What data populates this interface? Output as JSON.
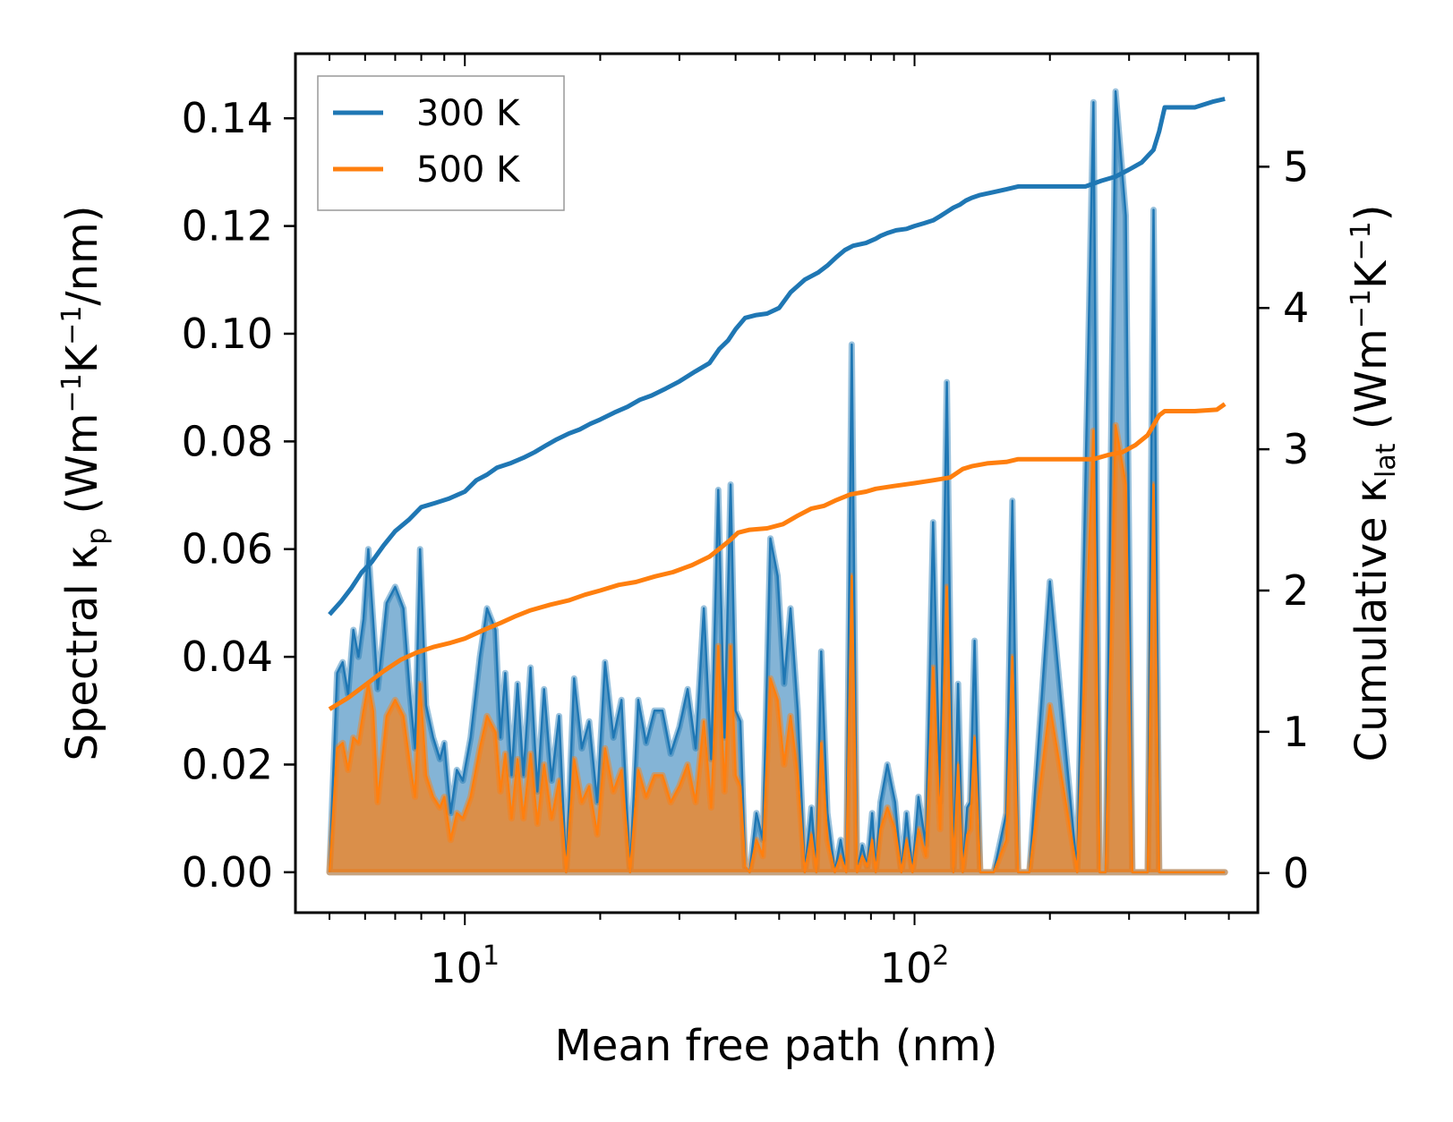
{
  "chart_data": {
    "type": "line",
    "xlabel": "Mean free path (nm)",
    "x_scale": "log",
    "xlim": [
      4.2,
      580
    ],
    "x_ticks": [
      {
        "value": 10,
        "base": "10",
        "exp": "1"
      },
      {
        "value": 100,
        "base": "10",
        "exp": "2"
      }
    ],
    "y_left": {
      "label": {
        "t1": "Spectral κ",
        "sub": "p",
        "t2": " (Wm",
        "sup1": "−1",
        "t3": "K",
        "sup2": "−1",
        "t4": "/nm)"
      },
      "ylim": [
        -0.0075,
        0.152
      ],
      "ticks": [
        "0.00",
        "0.02",
        "0.04",
        "0.06",
        "0.08",
        "0.10",
        "0.12",
        "0.14"
      ]
    },
    "y_right": {
      "label": {
        "t1": "Cumulative κ",
        "sub": "lat",
        "t2": " (Wm",
        "sup1": "−1",
        "t3": "K",
        "sup2": "−1",
        "t4": ")"
      },
      "ylim": [
        -0.28,
        5.8
      ],
      "ticks": [
        "0",
        "1",
        "2",
        "3",
        "4",
        "5"
      ]
    },
    "legend": {
      "position": "top-left"
    },
    "series": [
      {
        "name": "300 K",
        "color": "#1f77b4",
        "spectral": {
          "x": [
            5.0,
            5.2,
            5.35,
            5.5,
            5.65,
            5.8,
            5.95,
            6.1,
            6.25,
            6.4,
            6.7,
            7.0,
            7.3,
            7.55,
            7.75,
            7.95,
            8.2,
            8.5,
            8.8,
            9.0,
            9.3,
            9.6,
            9.9,
            10.3,
            10.8,
            11.2,
            11.7,
            12.0,
            12.3,
            12.7,
            13.1,
            13.5,
            14.0,
            14.5,
            15.0,
            15.6,
            16.2,
            16.8,
            17.5,
            18.2,
            18.9,
            19.7,
            20.5,
            21.4,
            22.3,
            23.3,
            24.3,
            25.3,
            26.4,
            27.5,
            28.7,
            30.0,
            31.3,
            32.6,
            34.0,
            35.3,
            36.6,
            37.8,
            39.0,
            40.0,
            41.0,
            42.0,
            43.0,
            44.5,
            46.0,
            47.8,
            49.6,
            51.3,
            53.0,
            55.0,
            57.0,
            59.0,
            60.5,
            62.0,
            64.0,
            66.5,
            68.5,
            70.5,
            72.5,
            74.5,
            76.5,
            78.5,
            80.5,
            82.0,
            84.0,
            87.0,
            90.5,
            93.5,
            96.0,
            99.0,
            102.0,
            106.0,
            110.0,
            114.0,
            118.0,
            122.0,
            125.0,
            128.0,
            131.0,
            133.0,
            136.0,
            140.0,
            150.0,
            160.0,
            165.0,
            170.0,
            180.0,
            200.0,
            230.0,
            250.0,
            258.0,
            266.0,
            280.0,
            295.0,
            305.0,
            313.0,
            320.0,
            325.0,
            330.0,
            340.0,
            350.0,
            358.0,
            365.0,
            372.0,
            380.0,
            400.0,
            430.0,
            460.0,
            480.0,
            490.0
          ],
          "values": [
            0.0,
            0.037,
            0.039,
            0.033,
            0.045,
            0.04,
            0.047,
            0.06,
            0.047,
            0.034,
            0.05,
            0.053,
            0.049,
            0.033,
            0.023,
            0.06,
            0.031,
            0.025,
            0.021,
            0.024,
            0.011,
            0.019,
            0.017,
            0.025,
            0.04,
            0.049,
            0.045,
            0.025,
            0.037,
            0.018,
            0.035,
            0.018,
            0.038,
            0.015,
            0.034,
            0.017,
            0.029,
            0.0,
            0.036,
            0.023,
            0.028,
            0.013,
            0.039,
            0.025,
            0.032,
            0.0,
            0.032,
            0.024,
            0.03,
            0.03,
            0.022,
            0.027,
            0.034,
            0.023,
            0.049,
            0.021,
            0.071,
            0.025,
            0.072,
            0.03,
            0.028,
            0.001,
            0.0,
            0.011,
            0.006,
            0.062,
            0.055,
            0.035,
            0.049,
            0.03,
            0.0,
            0.012,
            0.0,
            0.041,
            0.011,
            0.0,
            0.006,
            0.0,
            0.098,
            0.0,
            0.005,
            0.001,
            0.011,
            0.0,
            0.013,
            0.02,
            0.013,
            0.0,
            0.011,
            0.0,
            0.014,
            0.005,
            0.065,
            0.013,
            0.091,
            0.0,
            0.035,
            0.0,
            0.012,
            0.013,
            0.043,
            0.0,
            0.0,
            0.011,
            0.069,
            0.0,
            0.0,
            0.054,
            0.0,
            0.143,
            0.0,
            0.0,
            0.145,
            0.122,
            0.0,
            0.0,
            0.0,
            0.0,
            0.0,
            0.123,
            0.0,
            0.0,
            0.0,
            0.0,
            0.0,
            0.0,
            0.0,
            0.0,
            0.0,
            0.0
          ],
          "__note": "cumulative below"
        },
        "cumulative": {
          "x": [
            5.0,
            5.3,
            5.6,
            5.9,
            6.2,
            6.6,
            7.0,
            7.5,
            8.0,
            8.6,
            9.2,
            10.0,
            10.6,
            11.2,
            11.8,
            12.6,
            13.5,
            14.3,
            15.2,
            16.0,
            17.0,
            18.0,
            19.0,
            20.0,
            21.5,
            23.0,
            24.5,
            26.0,
            28.0,
            30.0,
            32.5,
            35.0,
            36.8,
            38.5,
            40.0,
            42.0,
            44.5,
            47.0,
            50.0,
            53.0,
            57.0,
            61.0,
            64.0,
            67.0,
            70.0,
            73.0,
            78.0,
            82.0,
            84.0,
            87.0,
            91.0,
            96.0,
            100.0,
            105.0,
            110.0,
            114.0,
            118.0,
            122.0,
            126.0,
            130.0,
            134.0,
            140.0,
            150.0,
            160.0,
            170.0,
            200.0,
            240.0,
            260.0,
            280.0,
            300.0,
            320.0,
            340.0,
            350.0,
            360.0,
            420.0,
            460.0,
            490.0
          ],
          "values": [
            1.83,
            1.92,
            2.02,
            2.13,
            2.2,
            2.32,
            2.42,
            2.5,
            2.59,
            2.62,
            2.65,
            2.7,
            2.78,
            2.82,
            2.87,
            2.9,
            2.94,
            2.98,
            3.03,
            3.07,
            3.11,
            3.14,
            3.18,
            3.21,
            3.26,
            3.3,
            3.35,
            3.38,
            3.43,
            3.48,
            3.55,
            3.61,
            3.71,
            3.77,
            3.85,
            3.93,
            3.95,
            3.96,
            4.0,
            4.11,
            4.2,
            4.25,
            4.3,
            4.36,
            4.41,
            4.44,
            4.46,
            4.49,
            4.51,
            4.53,
            4.55,
            4.56,
            4.58,
            4.6,
            4.62,
            4.65,
            4.68,
            4.71,
            4.73,
            4.76,
            4.78,
            4.8,
            4.82,
            4.84,
            4.86,
            4.86,
            4.86,
            4.9,
            4.93,
            4.98,
            5.03,
            5.12,
            5.25,
            5.42,
            5.42,
            5.46,
            5.48
          ]
        }
      },
      {
        "name": "500 K",
        "color": "#ff7f0e",
        "spectral": {
          "x": [
            5.0,
            5.2,
            5.35,
            5.5,
            5.65,
            5.8,
            5.95,
            6.1,
            6.25,
            6.4,
            6.7,
            7.0,
            7.3,
            7.55,
            7.75,
            7.95,
            8.2,
            8.5,
            8.8,
            9.0,
            9.3,
            9.6,
            9.9,
            10.3,
            10.8,
            11.2,
            11.7,
            12.0,
            12.3,
            12.7,
            13.1,
            13.5,
            14.0,
            14.5,
            15.0,
            15.6,
            16.2,
            16.8,
            17.5,
            18.2,
            18.9,
            19.7,
            20.5,
            21.4,
            22.3,
            23.3,
            24.3,
            25.3,
            26.4,
            27.5,
            28.7,
            30.0,
            31.3,
            32.6,
            34.0,
            35.3,
            36.6,
            37.8,
            39.0,
            40.0,
            41.0,
            42.0,
            43.0,
            44.5,
            46.0,
            47.8,
            49.6,
            51.3,
            53.0,
            55.0,
            57.0,
            59.0,
            60.5,
            62.0,
            64.0,
            66.5,
            68.5,
            70.5,
            72.5,
            74.5,
            76.5,
            78.5,
            80.5,
            82.0,
            84.0,
            87.0,
            90.5,
            93.5,
            96.0,
            99.0,
            102.0,
            106.0,
            110.0,
            114.0,
            118.0,
            122.0,
            125.0,
            128.0,
            131.0,
            133.0,
            136.0,
            140.0,
            150.0,
            160.0,
            165.0,
            170.0,
            180.0,
            200.0,
            230.0,
            250.0,
            258.0,
            266.0,
            280.0,
            295.0,
            305.0,
            313.0,
            320.0,
            325.0,
            330.0,
            340.0,
            350.0,
            358.0,
            365.0,
            372.0,
            380.0,
            400.0,
            430.0,
            460.0,
            480.0,
            490.0
          ],
          "values": [
            0.0,
            0.023,
            0.024,
            0.019,
            0.025,
            0.024,
            0.03,
            0.035,
            0.03,
            0.013,
            0.029,
            0.032,
            0.029,
            0.02,
            0.014,
            0.035,
            0.018,
            0.014,
            0.012,
            0.014,
            0.006,
            0.011,
            0.01,
            0.014,
            0.023,
            0.029,
            0.026,
            0.015,
            0.022,
            0.01,
            0.021,
            0.01,
            0.022,
            0.009,
            0.02,
            0.01,
            0.017,
            0.0,
            0.021,
            0.013,
            0.016,
            0.007,
            0.023,
            0.015,
            0.019,
            0.0,
            0.019,
            0.014,
            0.018,
            0.018,
            0.013,
            0.016,
            0.02,
            0.013,
            0.028,
            0.012,
            0.042,
            0.015,
            0.042,
            0.018,
            0.016,
            0.001,
            0.0,
            0.006,
            0.003,
            0.036,
            0.032,
            0.02,
            0.029,
            0.018,
            0.0,
            0.007,
            0.0,
            0.024,
            0.006,
            0.0,
            0.003,
            0.0,
            0.055,
            0.0,
            0.003,
            0.001,
            0.006,
            0.0,
            0.008,
            0.012,
            0.008,
            0.0,
            0.006,
            0.0,
            0.008,
            0.003,
            0.038,
            0.008,
            0.053,
            0.0,
            0.02,
            0.0,
            0.007,
            0.008,
            0.025,
            0.0,
            0.0,
            0.006,
            0.04,
            0.0,
            0.0,
            0.031,
            0.0,
            0.082,
            0.0,
            0.0,
            0.083,
            0.072,
            0.0,
            0.0,
            0.0,
            0.0,
            0.0,
            0.072,
            0.0,
            0.0,
            0.0,
            0.0,
            0.0,
            0.0,
            0.0,
            0.0,
            0.0,
            0.0
          ]
        },
        "cumulative": {
          "x": [
            5.0,
            5.5,
            6.0,
            6.6,
            7.2,
            7.8,
            8.5,
            9.3,
            10.0,
            11.0,
            12.0,
            13.0,
            14.0,
            15.5,
            17.0,
            18.5,
            20.0,
            22.0,
            24.0,
            26.5,
            29.0,
            32.0,
            35.0,
            37.0,
            39.0,
            40.5,
            43.0,
            47.0,
            51.0,
            55.0,
            59.0,
            63.0,
            67.0,
            72.0,
            78.0,
            82.0,
            90.0,
            100.0,
            110.0,
            120.0,
            128.0,
            134.0,
            145.0,
            160.0,
            170.0,
            200.0,
            250.0,
            270.0,
            290.0,
            310.0,
            330.0,
            350.0,
            360.0,
            420.0,
            470.0,
            490.0
          ],
          "values": [
            1.16,
            1.24,
            1.33,
            1.43,
            1.51,
            1.56,
            1.6,
            1.63,
            1.66,
            1.72,
            1.77,
            1.82,
            1.86,
            1.9,
            1.93,
            1.97,
            2.0,
            2.04,
            2.06,
            2.1,
            2.13,
            2.18,
            2.24,
            2.3,
            2.36,
            2.41,
            2.43,
            2.44,
            2.47,
            2.53,
            2.58,
            2.6,
            2.64,
            2.68,
            2.7,
            2.72,
            2.74,
            2.76,
            2.78,
            2.8,
            2.86,
            2.88,
            2.9,
            2.91,
            2.93,
            2.93,
            2.93,
            2.96,
            2.98,
            3.03,
            3.1,
            3.24,
            3.27,
            3.27,
            3.28,
            3.32
          ]
        }
      }
    ]
  }
}
